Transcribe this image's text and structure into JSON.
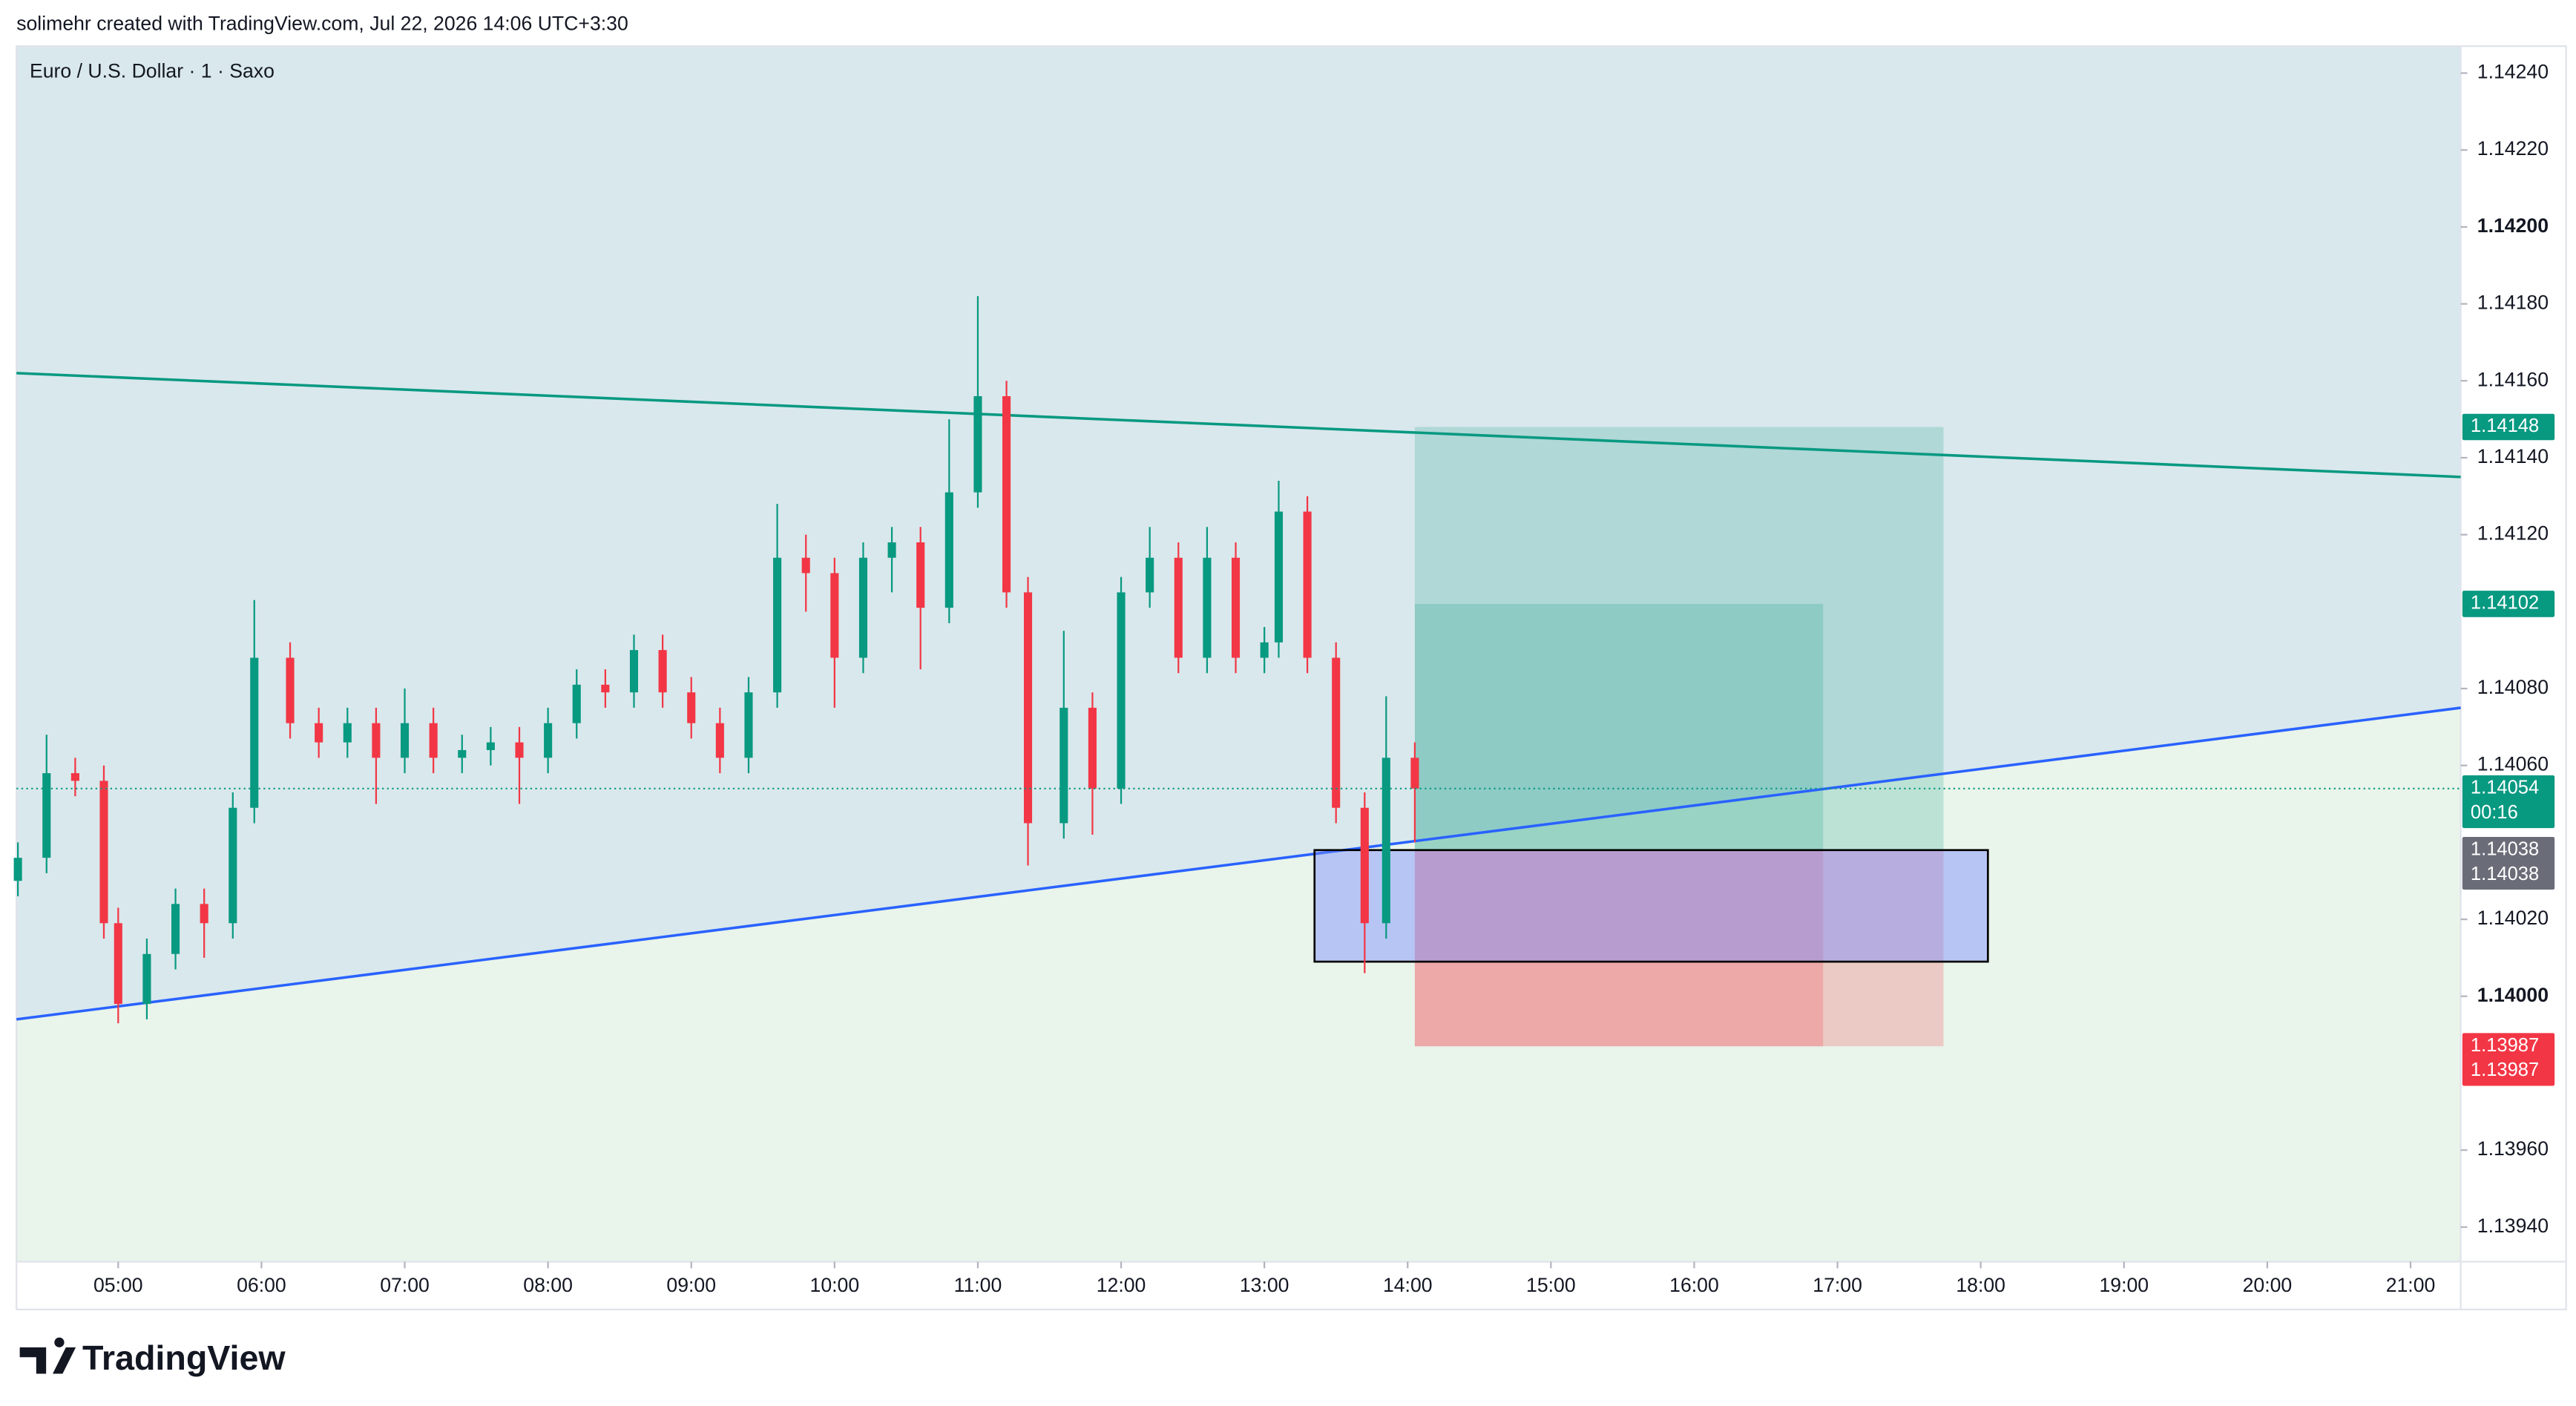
{
  "header": {
    "credit": "solimehr created with TradingView.com, Jul 22, 2026 14:06 UTC+3:30"
  },
  "chart_data": {
    "type": "candlestick",
    "title": "Euro / U.S. Dollar · 1 · Saxo",
    "x": [
      4.3,
      4.5,
      4.7,
      4.9,
      5.0,
      5.2,
      5.4,
      5.6,
      5.8,
      5.95,
      6.2,
      6.4,
      6.6,
      6.8,
      7.0,
      7.2,
      7.4,
      7.6,
      7.8,
      8.0,
      8.2,
      8.4,
      8.6,
      8.8,
      9.0,
      9.2,
      9.4,
      9.6,
      9.8,
      10.0,
      10.2,
      10.4,
      10.6,
      10.8,
      11.0,
      11.2,
      11.35,
      11.6,
      11.8,
      12.0,
      12.2,
      12.4,
      12.6,
      12.8,
      13.0,
      13.1,
      13.3,
      13.5,
      13.7,
      13.85,
      14.05
    ],
    "open": [
      1.1403,
      1.14036,
      1.14058,
      1.14056,
      1.14019,
      1.13998,
      1.14011,
      1.14024,
      1.14019,
      1.14049,
      1.14088,
      1.14071,
      1.14066,
      1.14071,
      1.14062,
      1.14071,
      1.14062,
      1.14064,
      1.14066,
      1.14062,
      1.14071,
      1.14081,
      1.14079,
      1.1409,
      1.14079,
      1.14071,
      1.14062,
      1.14079,
      1.14114,
      1.1411,
      1.14088,
      1.14114,
      1.14118,
      1.14101,
      1.14131,
      1.14156,
      1.14105,
      1.14045,
      1.14075,
      1.14054,
      1.14105,
      1.14114,
      1.14088,
      1.14114,
      1.14088,
      1.14092,
      1.14126,
      1.14088,
      1.14049,
      1.14019,
      1.14062
    ],
    "high": [
      1.1404,
      1.14068,
      1.14062,
      1.1406,
      1.14023,
      1.14015,
      1.14028,
      1.14028,
      1.14053,
      1.14103,
      1.14092,
      1.14075,
      1.14075,
      1.14075,
      1.1408,
      1.14075,
      1.14068,
      1.1407,
      1.1407,
      1.14075,
      1.14085,
      1.14085,
      1.14094,
      1.14094,
      1.14083,
      1.14075,
      1.14083,
      1.14128,
      1.1412,
      1.14114,
      1.14118,
      1.14122,
      1.14122,
      1.1415,
      1.14182,
      1.1416,
      1.14109,
      1.14095,
      1.14079,
      1.14109,
      1.14122,
      1.14118,
      1.14122,
      1.14118,
      1.14096,
      1.14134,
      1.1413,
      1.14092,
      1.14053,
      1.14078,
      1.14066
    ],
    "low": [
      1.14026,
      1.14032,
      1.14052,
      1.14015,
      1.13993,
      1.13994,
      1.14007,
      1.1401,
      1.14015,
      1.14045,
      1.14067,
      1.14062,
      1.14062,
      1.1405,
      1.14058,
      1.14058,
      1.14058,
      1.1406,
      1.1405,
      1.14058,
      1.14067,
      1.14075,
      1.14075,
      1.14075,
      1.14067,
      1.14058,
      1.14058,
      1.14075,
      1.141,
      1.14075,
      1.14084,
      1.14105,
      1.14085,
      1.14097,
      1.14127,
      1.14101,
      1.14034,
      1.14041,
      1.14042,
      1.1405,
      1.14101,
      1.14084,
      1.14084,
      1.14084,
      1.14084,
      1.14088,
      1.14084,
      1.14045,
      1.14006,
      1.14015,
      1.1404
    ],
    "close": [
      1.14036,
      1.14058,
      1.14056,
      1.14019,
      1.13998,
      1.14011,
      1.14024,
      1.14019,
      1.14049,
      1.14088,
      1.14071,
      1.14066,
      1.14071,
      1.14062,
      1.14071,
      1.14062,
      1.14064,
      1.14066,
      1.14062,
      1.14071,
      1.14081,
      1.14079,
      1.1409,
      1.14079,
      1.14071,
      1.14062,
      1.14079,
      1.14114,
      1.1411,
      1.14088,
      1.14114,
      1.14118,
      1.14101,
      1.14131,
      1.14156,
      1.14105,
      1.14045,
      1.14075,
      1.14054,
      1.14105,
      1.14114,
      1.14088,
      1.14114,
      1.14088,
      1.14092,
      1.14126,
      1.14088,
      1.14049,
      1.14019,
      1.14062,
      1.14054
    ],
    "up_color": "#089981",
    "down_color": "#f23645",
    "xlim": [
      4.29,
      21.35
    ],
    "ylim": [
      1.13931,
      1.14247
    ],
    "xticks": [
      {
        "value": 5,
        "label": "05:00"
      },
      {
        "value": 6,
        "label": "06:00"
      },
      {
        "value": 7,
        "label": "07:00"
      },
      {
        "value": 8,
        "label": "08:00"
      },
      {
        "value": 9,
        "label": "09:00"
      },
      {
        "value": 10,
        "label": "10:00"
      },
      {
        "value": 11,
        "label": "11:00"
      },
      {
        "value": 12,
        "label": "12:00"
      },
      {
        "value": 13,
        "label": "13:00"
      },
      {
        "value": 14,
        "label": "14:00"
      },
      {
        "value": 15,
        "label": "15:00"
      },
      {
        "value": 16,
        "label": "16:00"
      },
      {
        "value": 17,
        "label": "17:00"
      },
      {
        "value": 18,
        "label": "18:00"
      },
      {
        "value": 19,
        "label": "19:00"
      },
      {
        "value": 20,
        "label": "20:00"
      },
      {
        "value": 21,
        "label": "21:00"
      }
    ],
    "yticks": [
      {
        "value": 1.1424,
        "label": "1.14240"
      },
      {
        "value": 1.1422,
        "label": "1.14220"
      },
      {
        "value": 1.142,
        "label": "1.14200"
      },
      {
        "value": 1.1418,
        "label": "1.14180"
      },
      {
        "value": 1.1416,
        "label": "1.14160"
      },
      {
        "value": 1.1414,
        "label": "1.14140"
      },
      {
        "value": 1.1412,
        "label": "1.14120"
      },
      {
        "value": 1.1408,
        "label": "1.14080"
      },
      {
        "value": 1.1406,
        "label": "1.14060"
      },
      {
        "value": 1.1402,
        "label": "1.14020"
      },
      {
        "value": 1.14,
        "label": "1.14000"
      },
      {
        "value": 1.1396,
        "label": "1.13960"
      },
      {
        "value": 1.1394,
        "label": "1.13940"
      }
    ],
    "trend_lines": [
      {
        "x": [
          4.29,
          21.35
        ],
        "y": [
          1.14162,
          1.14135
        ],
        "color": "#089981"
      },
      {
        "x": [
          4.29,
          21.35
        ],
        "y": [
          1.13994,
          1.14075
        ],
        "color": "#2962ff"
      }
    ],
    "positions": [
      {
        "x": [
          14.05,
          17.74
        ],
        "entry": 1.14038,
        "target": 1.14148,
        "stop": 1.13987
      },
      {
        "x": [
          14.05,
          16.9
        ],
        "entry": 1.14038,
        "target": 1.14102,
        "stop": 1.13987
      }
    ],
    "rectangle": {
      "x": [
        13.35,
        18.05
      ],
      "y": [
        1.14009,
        1.14038
      ]
    },
    "price_labels": [
      {
        "value": 1.14148,
        "labels": [
          "1.14148"
        ],
        "color": "#089981"
      },
      {
        "value": 1.14102,
        "labels": [
          "1.14102"
        ],
        "color": "#089981"
      },
      {
        "value": 1.14054,
        "labels": [
          "1.14054",
          "00:16"
        ],
        "color": "#089981"
      },
      {
        "value": 1.14038,
        "labels": [
          "1.14038",
          "1.14038"
        ],
        "color": "#6a6d78"
      },
      {
        "value": 1.13987,
        "labels": [
          "1.13987",
          "1.13987"
        ],
        "color": "#f23645"
      }
    ]
  },
  "footer": {
    "brand": "TradingView"
  }
}
